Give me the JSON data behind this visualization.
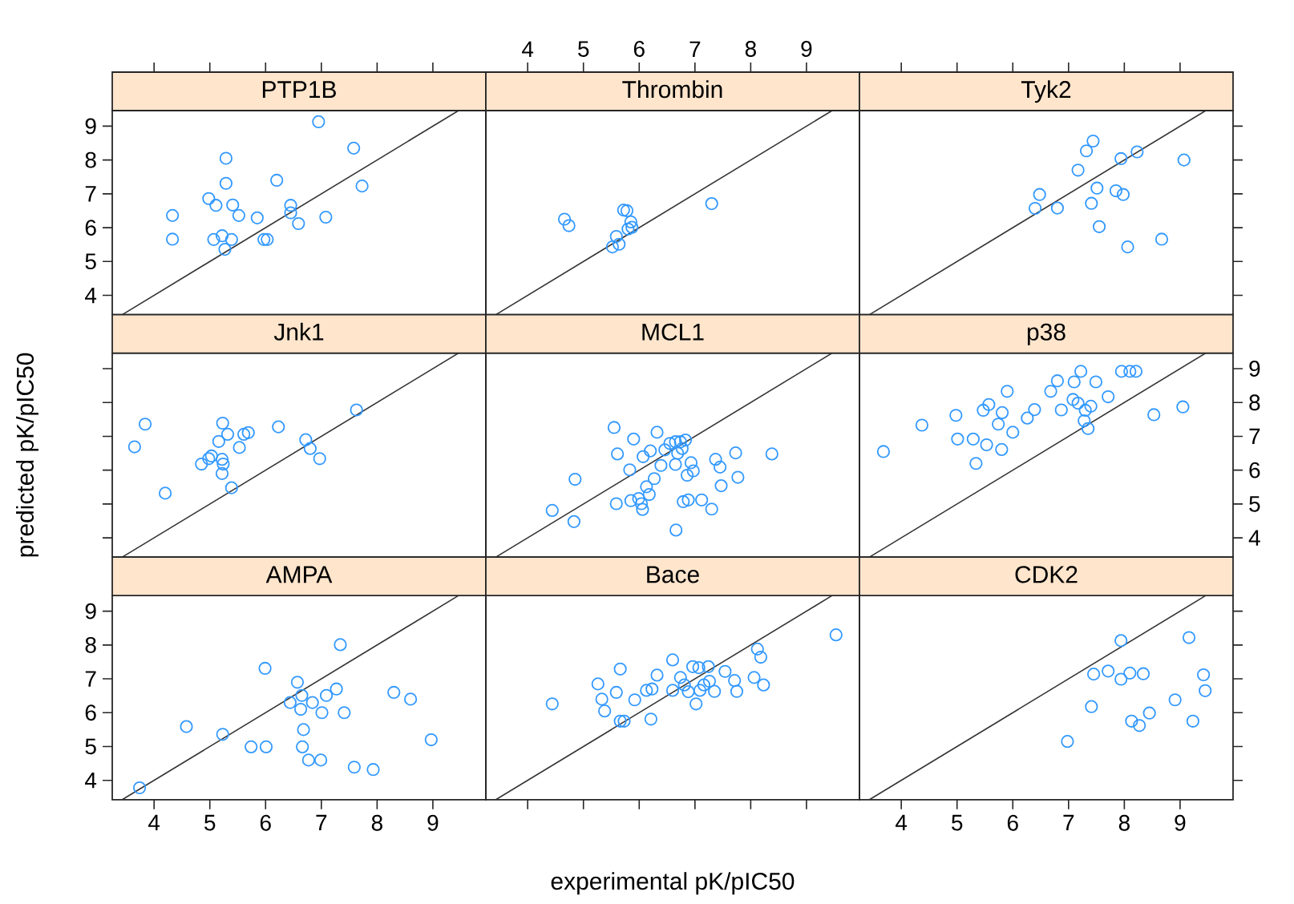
{
  "chart_data": [
    {
      "type": "scatter",
      "title": "PTP1B",
      "xlim": [
        3.25,
        9.95
      ],
      "ylim": [
        3.43,
        9.46
      ],
      "xticks": [
        4,
        5,
        6,
        7,
        8,
        9
      ],
      "yticks": [
        4,
        5,
        6,
        7,
        8,
        9
      ],
      "tick_labels": "y",
      "series": [
        {
          "marker": "circle",
          "color": "#3399ff",
          "x": [
            4.33,
            4.33,
            4.98,
            5.11,
            5.29,
            5.29,
            5.41,
            5.52,
            5.07,
            5.22,
            5.27,
            5.39,
            5.85,
            5.97,
            6.03,
            6.2,
            6.45,
            6.45,
            6.59,
            6.95,
            7.08,
            7.58,
            7.73
          ],
          "values": [
            5.66,
            6.36,
            6.86,
            6.66,
            8.05,
            7.31,
            6.67,
            6.36,
            5.65,
            5.76,
            5.36,
            5.65,
            6.29,
            5.65,
            5.65,
            7.4,
            6.66,
            6.44,
            6.12,
            9.13,
            6.31,
            8.35,
            7.23
          ]
        },
        {
          "type": "line",
          "color": "#333333",
          "x": [
            3.43,
            9.46
          ],
          "values": [
            3.43,
            9.46
          ]
        }
      ]
    },
    {
      "type": "scatter",
      "title": "Thrombin",
      "xlim": [
        3.25,
        9.95
      ],
      "ylim": [
        3.43,
        9.46
      ],
      "xticks": [
        4,
        5,
        6,
        7,
        8,
        9
      ],
      "tick_labels": "x",
      "series": [
        {
          "marker": "circle",
          "color": "#3399ff",
          "x": [
            4.66,
            4.74,
            5.52,
            5.64,
            5.59,
            5.78,
            5.72,
            5.85,
            5.87,
            5.8,
            7.3
          ],
          "values": [
            6.25,
            6.06,
            5.43,
            5.51,
            5.74,
            6.5,
            6.52,
            6.17,
            6.01,
            5.96,
            6.71
          ]
        },
        {
          "type": "line",
          "color": "#333333",
          "x": [
            3.43,
            9.46
          ],
          "values": [
            3.43,
            9.46
          ]
        }
      ]
    },
    {
      "type": "scatter",
      "title": "Tyk2",
      "xlim": [
        3.25,
        9.95
      ],
      "ylim": [
        3.43,
        9.46
      ],
      "xticks": [
        4,
        5,
        6,
        7,
        8,
        9
      ],
      "yticks": [
        4,
        5,
        6,
        7,
        8,
        9
      ],
      "tick_labels": false,
      "series": [
        {
          "marker": "circle",
          "color": "#3399ff",
          "x": [
            7.44,
            7.32,
            7.17,
            7.94,
            8.23,
            9.07,
            6.48,
            6.4,
            6.8,
            7.51,
            7.41,
            7.85,
            7.98,
            7.55,
            8.06,
            8.67
          ],
          "values": [
            8.56,
            8.27,
            7.7,
            8.04,
            8.24,
            8.0,
            6.98,
            6.57,
            6.58,
            7.17,
            6.72,
            7.09,
            6.98,
            6.03,
            5.43,
            5.66
          ]
        },
        {
          "type": "line",
          "color": "#333333",
          "x": [
            3.43,
            9.46
          ],
          "values": [
            3.43,
            9.46
          ]
        }
      ]
    },
    {
      "type": "scatter",
      "title": "Jnk1",
      "ylabel": "predicted pK/pIC50",
      "xlim": [
        3.25,
        9.95
      ],
      "ylim": [
        3.43,
        9.46
      ],
      "yticks": [
        4,
        5,
        6,
        7,
        8,
        9
      ],
      "tick_labels": false,
      "series": [
        {
          "marker": "circle",
          "color": "#3399ff",
          "x": [
            3.65,
            3.84,
            4.2,
            4.85,
            4.98,
            5.03,
            5.16,
            5.23,
            5.32,
            5.22,
            5.24,
            5.22,
            5.39,
            5.53,
            5.61,
            5.69,
            6.23,
            6.72,
            6.8,
            6.97,
            7.63
          ],
          "values": [
            6.69,
            7.36,
            5.32,
            6.18,
            6.34,
            6.42,
            6.85,
            7.39,
            7.06,
            6.32,
            6.18,
            5.9,
            5.48,
            6.67,
            7.06,
            7.11,
            7.28,
            6.9,
            6.64,
            6.34,
            7.78
          ]
        },
        {
          "type": "line",
          "color": "#333333",
          "x": [
            3.43,
            9.46
          ],
          "values": [
            3.43,
            9.46
          ]
        }
      ]
    },
    {
      "type": "scatter",
      "title": "MCL1",
      "xlim": [
        3.25,
        9.95
      ],
      "ylim": [
        3.43,
        9.46
      ],
      "tick_labels": false,
      "series": [
        {
          "marker": "circle",
          "color": "#3399ff",
          "x": [
            4.44,
            4.85,
            4.83,
            5.55,
            5.9,
            5.61,
            5.83,
            5.59,
            5.85,
            5.99,
            6.04,
            6.06,
            6.07,
            6.2,
            6.32,
            6.13,
            6.18,
            6.27,
            6.39,
            6.46,
            6.66,
            6.55,
            6.65,
            6.74,
            6.83,
            6.77,
            6.69,
            6.65,
            6.93,
            6.97,
            6.86,
            6.79,
            6.88,
            7.12,
            7.3,
            7.37,
            7.45,
            7.47,
            7.73,
            7.77,
            8.38
          ],
          "values": [
            4.81,
            5.73,
            4.48,
            7.26,
            6.92,
            6.48,
            6.01,
            5.01,
            5.1,
            5.16,
            5.01,
            4.84,
            6.4,
            6.57,
            7.12,
            5.51,
            5.28,
            5.75,
            6.14,
            6.6,
            4.23,
            6.79,
            6.84,
            6.84,
            6.89,
            6.64,
            6.5,
            6.17,
            6.22,
            5.98,
            5.85,
            5.07,
            5.12,
            5.12,
            4.85,
            6.32,
            6.09,
            5.54,
            6.51,
            5.79,
            6.48
          ]
        },
        {
          "type": "line",
          "color": "#333333",
          "x": [
            3.43,
            9.46
          ],
          "values": [
            3.43,
            9.46
          ]
        }
      ]
    },
    {
      "type": "scatter",
      "title": "p38",
      "xlim": [
        3.25,
        9.95
      ],
      "ylim": [
        3.43,
        9.46
      ],
      "yticks": [
        4,
        5,
        6,
        7,
        8,
        9
      ],
      "tick_labels": "y",
      "series": [
        {
          "marker": "circle",
          "color": "#3399ff",
          "x": [
            3.68,
            4.37,
            4.98,
            5.01,
            5.29,
            5.34,
            5.53,
            5.47,
            5.57,
            5.81,
            5.74,
            5.8,
            5.9,
            6.0,
            6.26,
            6.39,
            6.68,
            6.8,
            6.87,
            7.1,
            7.22,
            7.08,
            7.17,
            7.4,
            7.3,
            7.28,
            7.35,
            7.49,
            7.71,
            7.95,
            8.1,
            8.21,
            8.53,
            9.05
          ],
          "values": [
            6.55,
            7.33,
            7.62,
            6.92,
            6.92,
            6.2,
            6.75,
            7.77,
            7.94,
            7.7,
            7.36,
            6.61,
            8.33,
            7.12,
            7.54,
            7.79,
            8.33,
            8.64,
            7.78,
            8.61,
            8.92,
            8.09,
            7.98,
            7.89,
            7.77,
            7.46,
            7.23,
            8.61,
            8.17,
            8.92,
            8.92,
            8.92,
            7.64,
            7.87
          ]
        },
        {
          "type": "line",
          "color": "#333333",
          "x": [
            3.43,
            9.46
          ],
          "values": [
            3.43,
            9.46
          ]
        }
      ]
    },
    {
      "type": "scatter",
      "title": "AMPA",
      "xlim": [
        3.25,
        9.95
      ],
      "ylim": [
        3.43,
        9.46
      ],
      "xticks": [
        4,
        5,
        6,
        7,
        8,
        9
      ],
      "yticks": [
        4,
        5,
        6,
        7,
        8,
        9
      ],
      "series": [
        {
          "marker": "circle",
          "color": "#3399ff",
          "x": [
            3.74,
            4.58,
            5.23,
            5.74,
            6.01,
            5.99,
            6.44,
            6.57,
            6.65,
            6.63,
            6.68,
            6.66,
            6.77,
            6.84,
            7.01,
            6.99,
            7.09,
            7.27,
            7.34,
            7.41,
            7.59,
            7.93,
            8.3,
            8.6,
            8.97
          ],
          "values": [
            3.78,
            5.59,
            5.36,
            4.99,
            4.99,
            7.31,
            6.3,
            6.9,
            6.51,
            6.1,
            5.5,
            4.99,
            4.6,
            6.3,
            6.0,
            4.6,
            6.51,
            6.7,
            8.01,
            6.0,
            4.39,
            4.32,
            6.6,
            6.4,
            5.2
          ]
        },
        {
          "type": "line",
          "color": "#333333",
          "x": [
            3.43,
            9.46
          ],
          "values": [
            3.43,
            9.46
          ]
        }
      ]
    },
    {
      "type": "scatter",
      "title": "Bace",
      "xlabel": "experimental pK/pIC50",
      "xlim": [
        3.25,
        9.95
      ],
      "ylim": [
        3.43,
        9.46
      ],
      "xticks": [
        4,
        5,
        6,
        7,
        8,
        9
      ],
      "tick_labels": false,
      "series": [
        {
          "marker": "circle",
          "color": "#3399ff",
          "x": [
            4.44,
            5.26,
            5.33,
            5.38,
            5.59,
            5.66,
            5.66,
            5.73,
            5.92,
            6.21,
            6.13,
            6.23,
            6.32,
            6.6,
            6.6,
            6.74,
            6.81,
            6.88,
            6.96,
            7.02,
            7.07,
            7.09,
            7.16,
            7.24,
            7.26,
            7.35,
            7.54,
            7.71,
            7.75,
            8.06,
            8.12,
            8.18,
            8.23,
            9.53
          ],
          "values": [
            6.26,
            6.85,
            6.4,
            6.05,
            6.6,
            7.29,
            5.75,
            5.75,
            6.38,
            5.81,
            6.66,
            6.7,
            7.11,
            7.56,
            6.66,
            7.04,
            6.82,
            6.62,
            7.36,
            6.26,
            7.33,
            6.66,
            6.82,
            7.36,
            6.93,
            6.63,
            7.22,
            6.95,
            6.63,
            7.04,
            7.88,
            7.64,
            6.82,
            8.3
          ]
        },
        {
          "type": "line",
          "color": "#333333",
          "x": [
            3.43,
            9.46
          ],
          "values": [
            3.43,
            9.46
          ]
        }
      ]
    },
    {
      "type": "scatter",
      "title": "CDK2",
      "xlim": [
        3.25,
        9.95
      ],
      "ylim": [
        3.43,
        9.46
      ],
      "xticks": [
        4,
        5,
        6,
        7,
        8,
        9
      ],
      "yticks": [
        4,
        5,
        6,
        7,
        8,
        9
      ],
      "tick_labels": "x",
      "series": [
        {
          "marker": "circle",
          "color": "#3399ff",
          "x": [
            6.98,
            7.41,
            7.45,
            7.71,
            7.94,
            7.94,
            8.1,
            8.13,
            8.27,
            8.34,
            8.45,
            8.91,
            9.16,
            9.23,
            9.42,
            9.45
          ],
          "values": [
            5.15,
            6.18,
            7.14,
            7.23,
            6.99,
            8.13,
            7.17,
            5.75,
            5.62,
            7.15,
            5.99,
            6.38,
            8.22,
            5.75,
            7.12,
            6.65
          ]
        },
        {
          "type": "line",
          "color": "#333333",
          "x": [
            3.43,
            9.46
          ],
          "values": [
            3.43,
            9.46
          ]
        }
      ]
    }
  ]
}
